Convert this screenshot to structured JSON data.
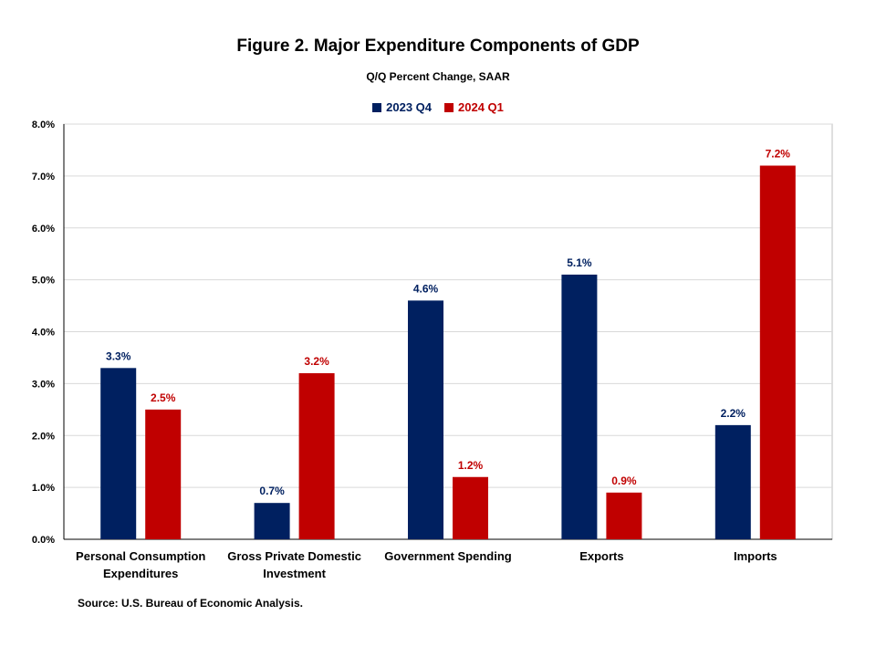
{
  "title": "Figure 2. Major Expenditure Components of GDP",
  "subtitle": "Q/Q Percent Change, SAAR",
  "source": "Source: U.S. Bureau of Economic Analysis.",
  "colors": {
    "series1": "#002060",
    "series2": "#C00000",
    "grid": "#d9d9d9",
    "axis": "#000000"
  },
  "chart_data": {
    "type": "bar",
    "categories": [
      [
        "Personal Consumption",
        "Expenditures"
      ],
      [
        "Gross Private Domestic",
        "Investment"
      ],
      [
        "Government Spending"
      ],
      [
        "Exports"
      ],
      [
        "Imports"
      ]
    ],
    "series": [
      {
        "name": "2023 Q4",
        "values": [
          3.3,
          0.7,
          4.6,
          5.1,
          2.2
        ],
        "labels": [
          "3.3%",
          "0.7%",
          "4.6%",
          "5.1%",
          "2.2%"
        ]
      },
      {
        "name": "2024 Q1",
        "values": [
          2.5,
          3.2,
          1.2,
          0.9,
          7.2
        ],
        "labels": [
          "2.5%",
          "3.2%",
          "1.2%",
          "0.9%",
          "7.2%"
        ]
      }
    ],
    "ylim": [
      0,
      8
    ],
    "yticks": [
      "0.0%",
      "1.0%",
      "2.0%",
      "3.0%",
      "4.0%",
      "5.0%",
      "6.0%",
      "7.0%",
      "8.0%"
    ],
    "grid": true,
    "legend": "top-center"
  }
}
